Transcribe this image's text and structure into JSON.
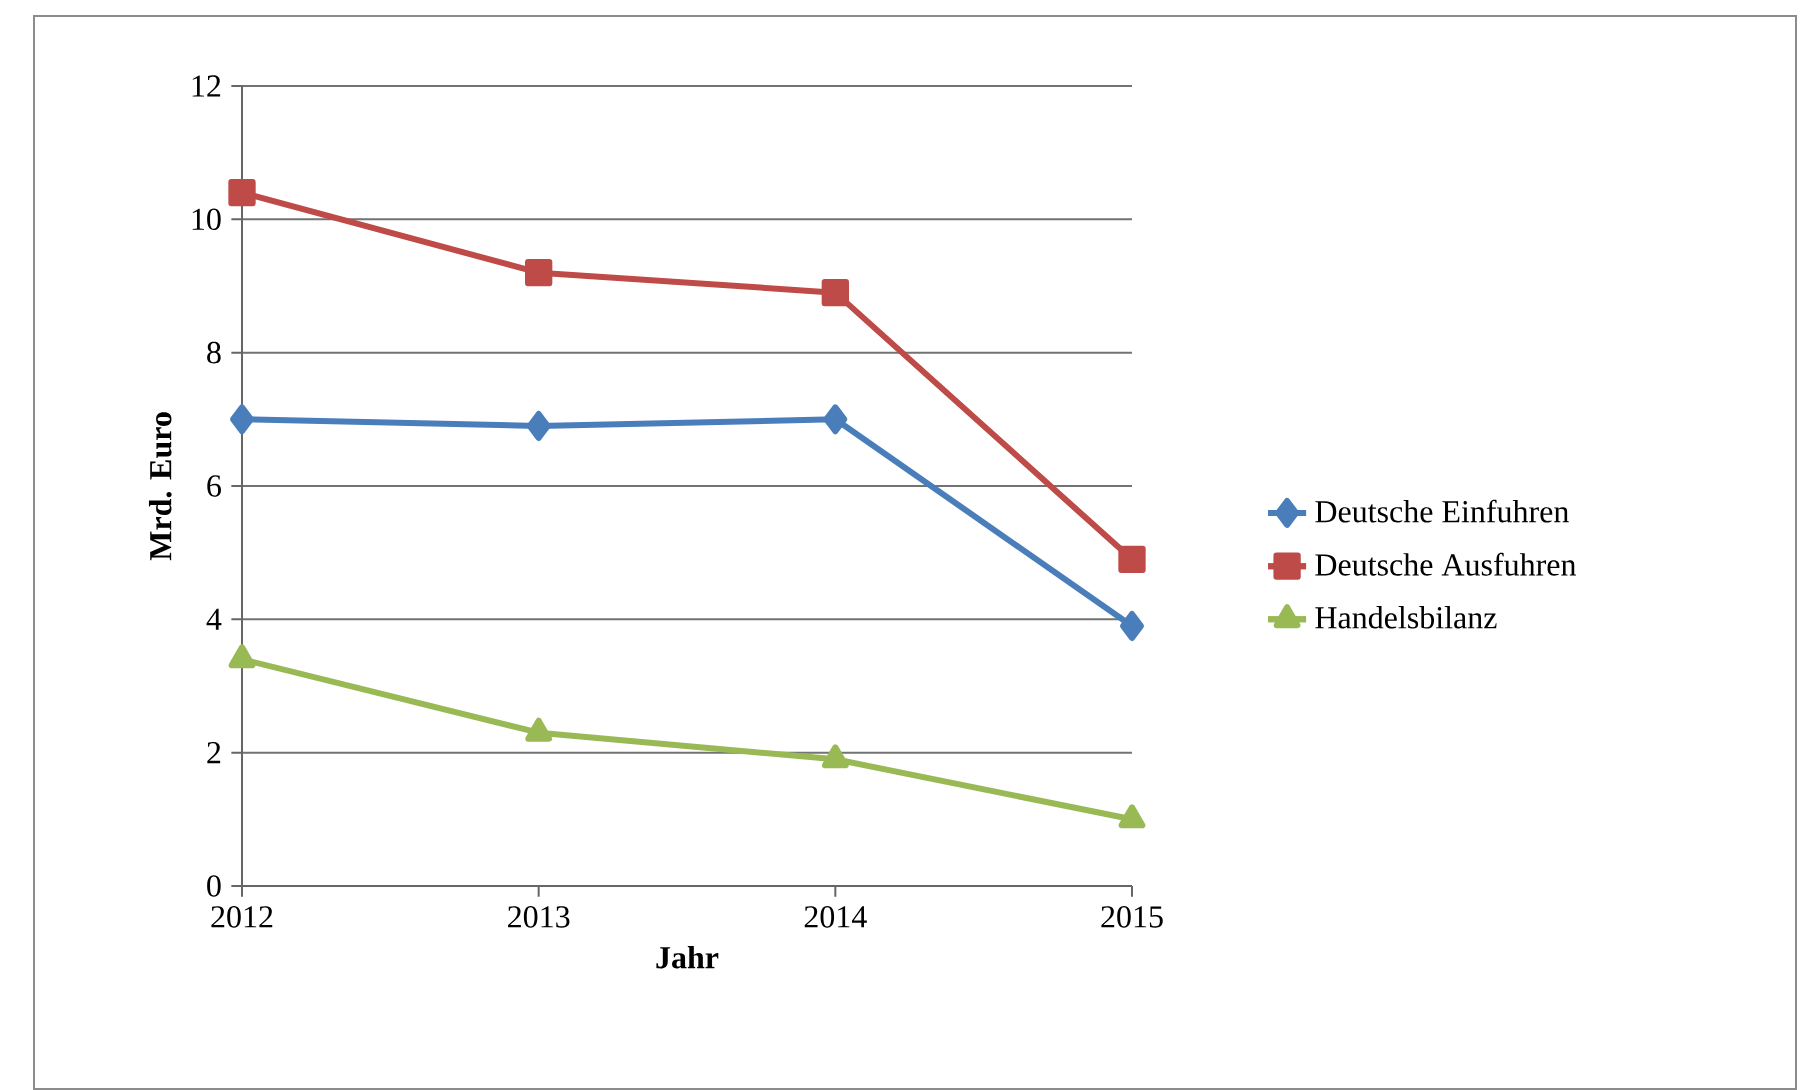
{
  "chart_data": {
    "type": "line",
    "xlabel": "Jahr",
    "ylabel": "Mrd. Euro",
    "categories": [
      "2012",
      "2013",
      "2014",
      "2015"
    ],
    "series": [
      {
        "name": "Deutsche Einfuhren",
        "color": "#4a7ebb",
        "marker": "diamond",
        "values": [
          7.0,
          6.9,
          7.0,
          3.9
        ]
      },
      {
        "name": "Deutsche Ausfuhren",
        "color": "#be4b48",
        "marker": "square",
        "values": [
          10.4,
          9.2,
          8.9,
          4.9
        ]
      },
      {
        "name": "Handelsbilanz",
        "color": "#98b954",
        "marker": "triangle",
        "values": [
          3.4,
          2.3,
          1.9,
          1.0
        ]
      }
    ],
    "ylim": [
      0,
      12
    ],
    "yticks": [
      0,
      2,
      4,
      6,
      8,
      10,
      12
    ],
    "grid": "y",
    "legend": "right",
    "line_style": "solid"
  }
}
